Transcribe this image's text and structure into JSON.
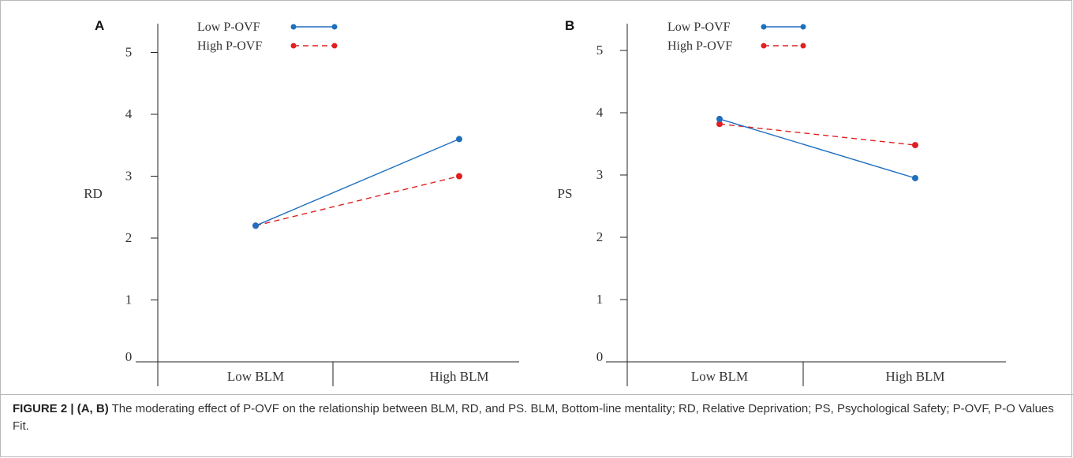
{
  "colors": {
    "low": "#1f6fbf",
    "high": "#e02020",
    "axis": "#222222",
    "text": "#333333"
  },
  "chart_data": [
    {
      "panel": "A",
      "type": "line",
      "ylabel": "RD",
      "categories": [
        "Low BLM",
        "High BLM"
      ],
      "yticks": [
        0,
        1,
        2,
        3,
        4,
        5
      ],
      "ylim": [
        0,
        5.5
      ],
      "legend_position": "top-left",
      "series": [
        {
          "name": "Low P-OVF",
          "values": [
            2.2,
            3.6
          ],
          "style": "solid",
          "color": "#1f6fbf"
        },
        {
          "name": "High P-OVF",
          "values": [
            2.2,
            3.0
          ],
          "style": "dashed",
          "color": "#e02020"
        }
      ]
    },
    {
      "panel": "B",
      "type": "line",
      "ylabel": "PS",
      "categories": [
        "Low BLM",
        "High BLM"
      ],
      "yticks": [
        0,
        1,
        2,
        3,
        4,
        5
      ],
      "ylim": [
        0,
        5.5
      ],
      "legend_position": "top-left",
      "series": [
        {
          "name": "Low P-OVF",
          "values": [
            3.9,
            2.95
          ],
          "style": "solid",
          "color": "#1f6fbf"
        },
        {
          "name": "High P-OVF",
          "values": [
            3.82,
            3.48
          ],
          "style": "dashed",
          "color": "#e02020"
        }
      ]
    }
  ],
  "caption": {
    "figure_label": "FIGURE 2 |",
    "panels_label": "(A, B)",
    "text": "The moderating effect of P-OVF on the relationship between BLM, RD, and PS. BLM, Bottom-line mentality; RD, Relative Deprivation; PS, Psychological Safety; P-OVF, P-O Values Fit."
  }
}
